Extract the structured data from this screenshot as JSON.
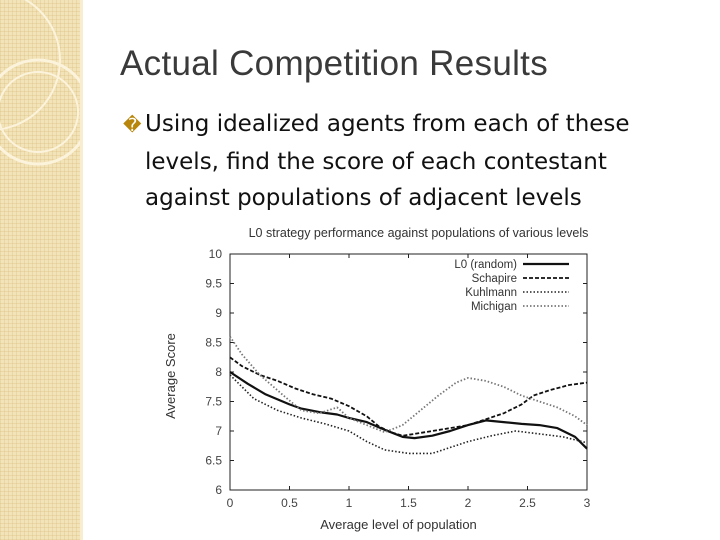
{
  "slide": {
    "title": "Actual Competition Results",
    "bullet_glyph": "�",
    "bullet_lines": [
      "Using idealized agents from each of these",
      "levels, find the score of each contestant",
      "against populations of adjacent levels"
    ]
  },
  "chart_data": {
    "type": "line",
    "title": "L0 strategy performance against populations of various levels",
    "xlabel": "Average level of population",
    "ylabel": "Average Score",
    "xlim": [
      0,
      3
    ],
    "ylim": [
      6,
      10
    ],
    "xticks": [
      "0",
      "0.5",
      "1",
      "1.5",
      "2",
      "2.5",
      "3"
    ],
    "yticks": [
      "6",
      "6.5",
      "7",
      "7.5",
      "8",
      "8.5",
      "9",
      "9.5",
      "10"
    ],
    "legend_position": "top-right",
    "series": [
      {
        "name": "L0 (random)",
        "style": "solid",
        "x": [
          0,
          0.15,
          0.3,
          0.5,
          0.6,
          0.75,
          0.9,
          1.0,
          1.15,
          1.3,
          1.45,
          1.55,
          1.7,
          1.85,
          2.0,
          2.15,
          2.3,
          2.45,
          2.6,
          2.75,
          2.9,
          3.0
        ],
        "y": [
          8.0,
          7.8,
          7.62,
          7.45,
          7.38,
          7.32,
          7.28,
          7.22,
          7.15,
          7.02,
          6.9,
          6.88,
          6.92,
          7.0,
          7.1,
          7.18,
          7.15,
          7.12,
          7.1,
          7.05,
          6.9,
          6.7
        ]
      },
      {
        "name": "Schapire",
        "style": "dashed",
        "x": [
          0,
          0.1,
          0.25,
          0.4,
          0.55,
          0.7,
          0.85,
          1.0,
          1.15,
          1.25,
          1.35,
          1.45,
          1.55,
          1.7,
          1.85,
          2.0,
          2.15,
          2.3,
          2.45,
          2.55,
          2.7,
          2.85,
          3.0
        ],
        "y": [
          8.25,
          8.1,
          7.95,
          7.85,
          7.72,
          7.62,
          7.55,
          7.42,
          7.25,
          7.08,
          6.98,
          6.92,
          6.95,
          7.0,
          7.05,
          7.1,
          7.2,
          7.3,
          7.45,
          7.6,
          7.7,
          7.78,
          7.82
        ]
      },
      {
        "name": "Kuhlmann",
        "style": "dotted",
        "x": [
          0,
          0.2,
          0.4,
          0.6,
          0.8,
          1.0,
          1.15,
          1.3,
          1.5,
          1.7,
          1.85,
          2.0,
          2.2,
          2.4,
          2.6,
          2.8,
          3.0
        ],
        "y": [
          7.95,
          7.55,
          7.35,
          7.22,
          7.12,
          7.0,
          6.82,
          6.68,
          6.62,
          6.62,
          6.72,
          6.82,
          6.92,
          7.0,
          6.95,
          6.9,
          6.8
        ]
      },
      {
        "name": "Michigan",
        "style": "dotted-gray",
        "x": [
          0,
          0.1,
          0.25,
          0.45,
          0.6,
          0.75,
          0.9,
          1.0,
          1.15,
          1.3,
          1.45,
          1.6,
          1.75,
          1.9,
          2.0,
          2.15,
          2.3,
          2.45,
          2.6,
          2.75,
          2.9,
          3.0
        ],
        "y": [
          8.6,
          8.3,
          7.95,
          7.6,
          7.35,
          7.3,
          7.4,
          7.22,
          7.1,
          6.98,
          7.1,
          7.35,
          7.6,
          7.82,
          7.9,
          7.85,
          7.75,
          7.6,
          7.5,
          7.4,
          7.25,
          7.1
        ]
      }
    ]
  }
}
